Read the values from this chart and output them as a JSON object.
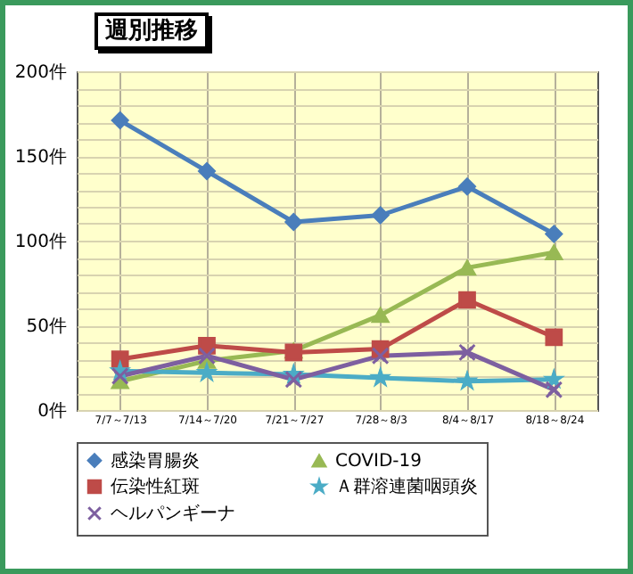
{
  "chart_data": {
    "type": "line",
    "title": "週別推移",
    "categories": [
      "7/7～7/13",
      "7/14～7/20",
      "7/21～7/27",
      "7/28～8/3",
      "8/4～8/17",
      "8/18～8/24"
    ],
    "series": [
      {
        "name": "感染胃腸炎",
        "color": "#4a7ebb",
        "marker": "diamond",
        "values": [
          171,
          141,
          111,
          115,
          132,
          104
        ]
      },
      {
        "name": "COVID-19",
        "color": "#98b954",
        "marker": "triangle",
        "values": [
          17,
          29,
          35,
          56,
          84,
          93
        ]
      },
      {
        "name": "伝染性紅斑",
        "color": "#be4b48",
        "marker": "square",
        "values": [
          30,
          38,
          34,
          36,
          65,
          43
        ]
      },
      {
        "name": "Ａ群溶連菌咽頭炎",
        "color": "#4bacc6",
        "marker": "star",
        "values": [
          23,
          22,
          21,
          19,
          17,
          18
        ]
      },
      {
        "name": "ヘルパンギーナ",
        "color": "#7d5fa0",
        "marker": "cross",
        "values": [
          20,
          32,
          18,
          32,
          34,
          12
        ]
      }
    ],
    "ylim": [
      0,
      200
    ],
    "yticks": [
      {
        "value": 0,
        "label": "0件"
      },
      {
        "value": 10,
        "label": null
      },
      {
        "value": 20,
        "label": null
      },
      {
        "value": 30,
        "label": null
      },
      {
        "value": 40,
        "label": null
      },
      {
        "value": 50,
        "label": "50件"
      },
      {
        "value": 60,
        "label": null
      },
      {
        "value": 70,
        "label": null
      },
      {
        "value": 80,
        "label": null
      },
      {
        "value": 90,
        "label": null
      },
      {
        "value": 100,
        "label": "100件"
      },
      {
        "value": 110,
        "label": null
      },
      {
        "value": 120,
        "label": null
      },
      {
        "value": 130,
        "label": null
      },
      {
        "value": 140,
        "label": null
      },
      {
        "value": 150,
        "label": "150件"
      },
      {
        "value": 160,
        "label": null
      },
      {
        "value": 170,
        "label": null
      },
      {
        "value": 180,
        "label": null
      },
      {
        "value": 190,
        "label": null
      },
      {
        "value": 200,
        "label": "200件"
      }
    ],
    "grid": true,
    "legend": "bottom",
    "line_style": "solid"
  }
}
